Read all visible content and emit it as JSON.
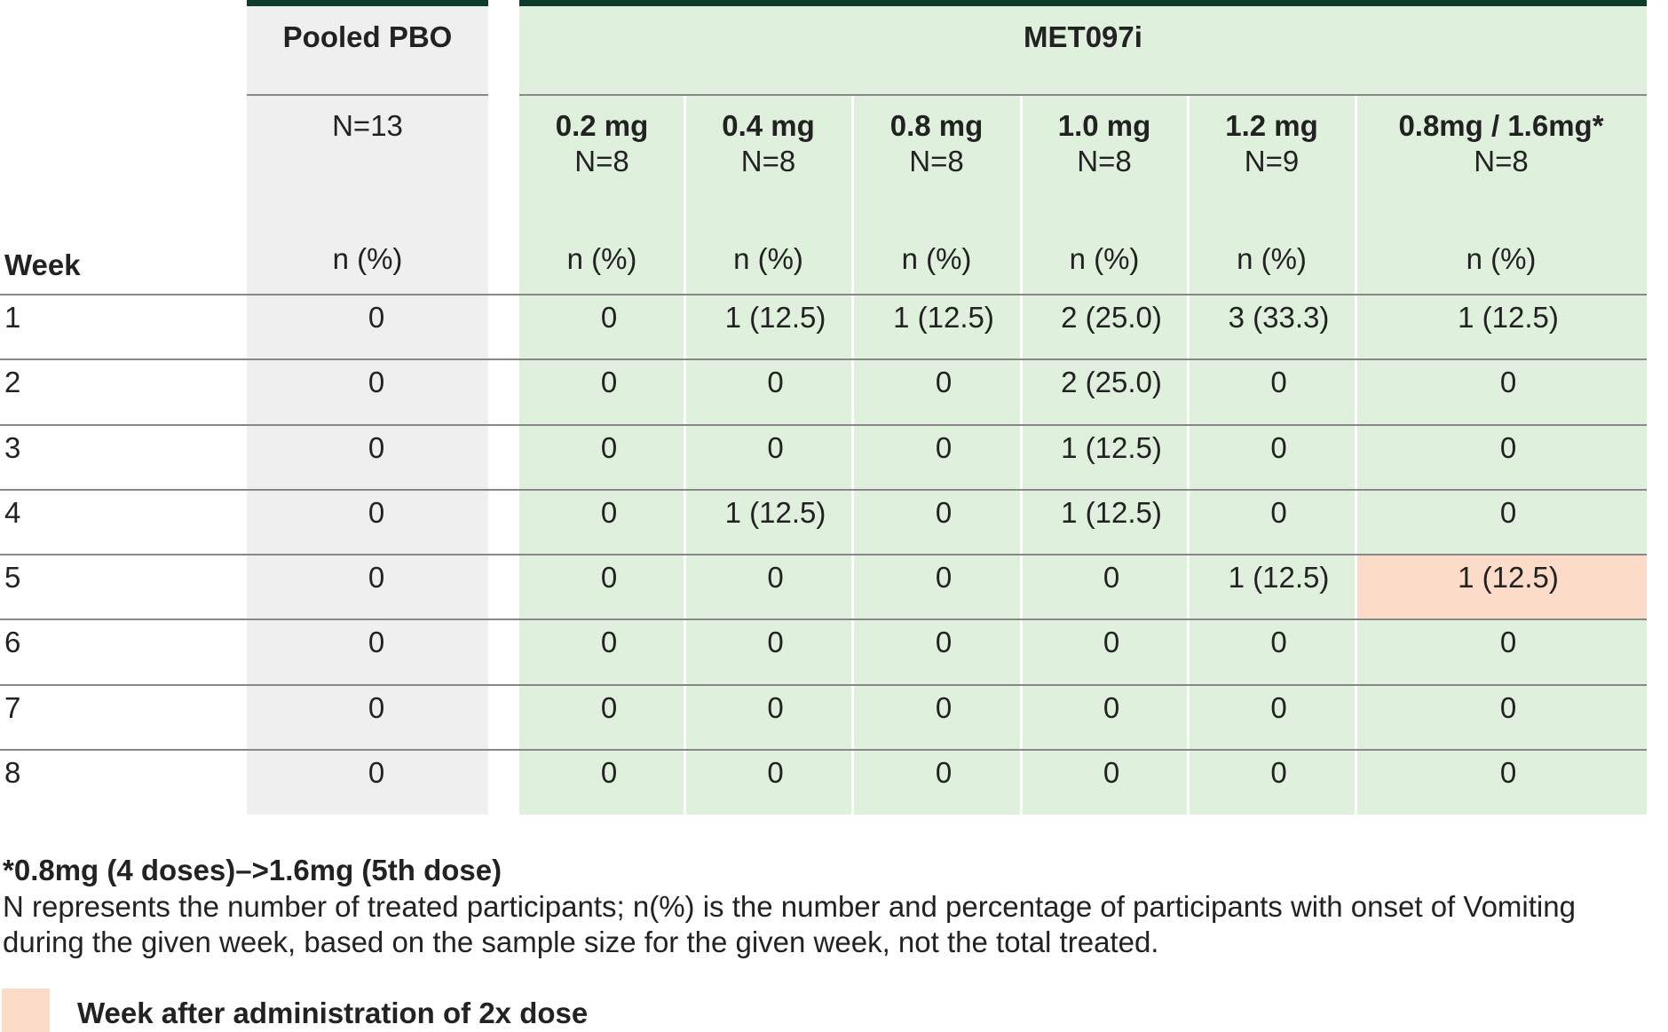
{
  "table": {
    "group_headers": [
      "Pooled PBO",
      "MET097i"
    ],
    "columns": [
      {
        "dose": null,
        "n": "N=13"
      },
      {
        "dose": "0.2 mg",
        "n": "N=8"
      },
      {
        "dose": "0.4 mg",
        "n": "N=8"
      },
      {
        "dose": "0.8 mg",
        "n": "N=8"
      },
      {
        "dose": "1.0 mg",
        "n": "N=8"
      },
      {
        "dose": "1.2 mg",
        "n": "N=9"
      },
      {
        "dose": "0.8mg / 1.6mg*",
        "n": "N=8"
      }
    ],
    "row_header": "Week",
    "stat_labels": [
      "n (%)",
      "n (%)",
      "n (%)",
      "n (%)",
      "n (%)",
      "n (%)",
      "n (%)"
    ],
    "rows": [
      [
        "1",
        "0",
        "0",
        "1 (12.5)",
        "1 (12.5)",
        "2 (25.0)",
        "3 (33.3)",
        "1 (12.5)"
      ],
      [
        "2",
        "0",
        "0",
        "0",
        "0",
        "2 (25.0)",
        "0",
        "0"
      ],
      [
        "3",
        "0",
        "0",
        "0",
        "0",
        "1 (12.5)",
        "0",
        "0"
      ],
      [
        "4",
        "0",
        "0",
        "1 (12.5)",
        "0",
        "1 (12.5)",
        "0",
        "0"
      ],
      [
        "5",
        "0",
        "0",
        "0",
        "0",
        "0",
        "1 (12.5)",
        "1 (12.5)"
      ],
      [
        "6",
        "0",
        "0",
        "0",
        "0",
        "0",
        "0",
        "0"
      ],
      [
        "7",
        "0",
        "0",
        "0",
        "0",
        "0",
        "0",
        "0"
      ],
      [
        "8",
        "0",
        "0",
        "0",
        "0",
        "0",
        "0",
        "0"
      ]
    ]
  },
  "footnote": {
    "title": "*0.8mg (4 doses)–>1.6mg (5th dose)",
    "lines": [
      "N represents the number of treated participants; n(%) is the number and percentage of participants with onset of Vomiting",
      "during the given week, based on the sample size for the given week, not the total treated."
    ]
  },
  "legend": {
    "label": "Week after administration of 2x dose"
  }
}
